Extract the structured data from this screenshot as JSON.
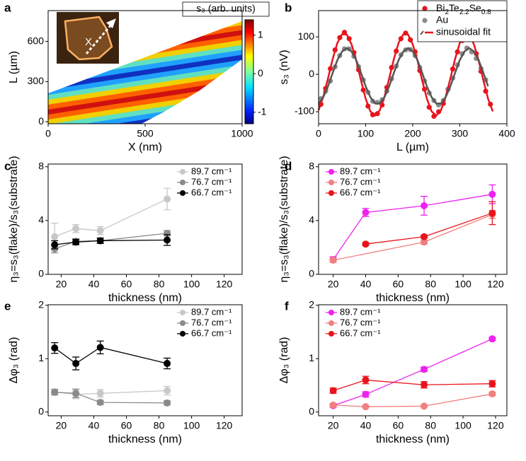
{
  "chart_data": [
    {
      "type": "heatmap",
      "label": "a",
      "xlabel": "X (nm)",
      "ylabel": "L (µm)",
      "xlim": [
        0,
        1000
      ],
      "xticks": [
        0,
        500,
        1000
      ],
      "ylim": [
        -15,
        830
      ],
      "yticks": [
        0,
        300,
        600
      ],
      "colorbar_label": "s₃ (arb. units)",
      "clim": [
        -1.3,
        1.4
      ],
      "cticks": [
        -1,
        0,
        1
      ],
      "inset_label": "X"
    },
    {
      "type": "scatter",
      "label": "b",
      "xlabel": "L (µm)",
      "ylabel": "s₃ (nV)",
      "xlim": [
        0,
        400
      ],
      "xticks": [
        0,
        100,
        200,
        300,
        400
      ],
      "ylim": [
        -132,
        170
      ],
      "yticks": [
        -100,
        0,
        100
      ],
      "legend": "upper right",
      "series": [
        {
          "name": "Bi2Te2.2Se0.8",
          "color": "#e8141c",
          "mode": "markers",
          "x": [
            5,
            15,
            25,
            35,
            45,
            55,
            65,
            75,
            85,
            95,
            105,
            115,
            125,
            135,
            145,
            155,
            165,
            175,
            185,
            195,
            205,
            215,
            225,
            235,
            245,
            255,
            265,
            275,
            285,
            295,
            305,
            315,
            325,
            335,
            345,
            355,
            365
          ],
          "values": [
            -80,
            -38,
            15,
            65,
            98,
            112,
            95,
            58,
            12,
            -42,
            -85,
            -108,
            -105,
            -82,
            -35,
            18,
            62,
            95,
            110,
            92,
            60,
            10,
            -40,
            -88,
            -112,
            -100,
            -78,
            -40,
            14,
            60,
            90,
            100,
            96,
            55,
            8,
            -45,
            -80
          ]
        },
        {
          "name": "Au",
          "color": "#8c8c8c",
          "mode": "markers",
          "x": [
            5,
            15,
            25,
            35,
            45,
            55,
            65,
            75,
            85,
            95,
            105,
            115,
            125,
            135,
            145,
            155,
            165,
            175,
            185,
            195,
            205,
            215,
            225,
            235,
            245,
            255,
            265,
            275,
            285,
            295,
            305,
            315,
            325,
            335,
            345,
            355
          ],
          "values": [
            -65,
            -45,
            -18,
            20,
            50,
            68,
            68,
            48,
            20,
            -15,
            -48,
            -72,
            -75,
            -68,
            -45,
            -12,
            22,
            52,
            65,
            66,
            50,
            18,
            -18,
            -50,
            -70,
            -82,
            -70,
            -40,
            -10,
            25,
            55,
            70,
            60,
            42,
            15,
            -15
          ]
        },
        {
          "name": "sinusoidal fit",
          "color": "#e8141c",
          "mode": "line",
          "x": [
            0,
            10,
            20,
            30,
            40,
            50,
            60,
            70,
            80,
            90,
            100,
            110,
            120,
            130,
            140,
            150,
            160,
            170,
            180,
            190,
            200,
            210,
            220,
            230,
            240,
            250,
            260,
            270,
            280,
            290,
            300,
            310,
            320,
            330,
            340,
            350,
            360,
            370
          ],
          "values": [
            -96,
            -60,
            -11,
            41,
            84,
            107,
            106,
            80,
            37,
            -16,
            -65,
            -99,
            -110,
            -96,
            -60,
            -11,
            41,
            84,
            107,
            106,
            80,
            37,
            -16,
            -65,
            -99,
            -110,
            -96,
            -60,
            -11,
            41,
            84,
            107,
            106,
            80,
            37,
            -16,
            -65,
            -99
          ]
        },
        {
          "color": "#555555",
          "mode": "line",
          "x": [
            0,
            10,
            20,
            30,
            40,
            50,
            60,
            70,
            80,
            90,
            100,
            110,
            120,
            130,
            140,
            150,
            160,
            170,
            180,
            190,
            200,
            210,
            220,
            230,
            240,
            250,
            260,
            270,
            280,
            290,
            300,
            310,
            320,
            330,
            340,
            350,
            360
          ],
          "values": [
            -78,
            -61,
            -32,
            4,
            38,
            61,
            70,
            61,
            38,
            4,
            -32,
            -61,
            -78,
            -78,
            -61,
            -32,
            4,
            38,
            61,
            70,
            61,
            38,
            4,
            -32,
            -61,
            -78,
            -78,
            -61,
            -32,
            4,
            38,
            61,
            70,
            61,
            38,
            4,
            -32
          ]
        }
      ]
    },
    {
      "type": "line",
      "label": "c",
      "xlabel": "thickness (nm)",
      "ylabel": "η₃=s₃(flake)/s₃(substrate)",
      "xlim": [
        12,
        131
      ],
      "xticks": [
        20,
        40,
        60,
        80,
        100,
        120
      ],
      "ylim": [
        0,
        8.2
      ],
      "yticks": [
        0,
        4,
        8
      ],
      "legend": "upper right",
      "series": [
        {
          "name": "89.7 cm⁻¹",
          "color": "#c8c8c8",
          "x": [
            16,
            29,
            44,
            85
          ],
          "values": [
            2.8,
            3.4,
            3.25,
            5.6
          ],
          "errors": [
            1.0,
            0.3,
            0.3,
            0.8
          ]
        },
        {
          "name": "76.7 cm⁻¹",
          "color": "#8a8a8a",
          "x": [
            16,
            29,
            44,
            85
          ],
          "values": [
            1.9,
            2.45,
            2.5,
            3.05
          ],
          "errors": [
            0.3,
            0.2,
            0.2,
            0.2
          ]
        },
        {
          "name": "66.7 cm⁻¹",
          "color": "#000000",
          "x": [
            16,
            29,
            44,
            85
          ],
          "values": [
            2.2,
            2.4,
            2.5,
            2.55
          ],
          "errors": [
            0.3,
            0.2,
            0.2,
            0.4
          ]
        }
      ]
    },
    {
      "type": "line",
      "label": "d",
      "xlabel": "thickness (nm)",
      "ylabel": "η₃=s₃(flake)/s₃(substrate)",
      "xlim": [
        11,
        127
      ],
      "xticks": [
        20,
        40,
        60,
        80,
        100,
        120
      ],
      "ylim": [
        0,
        8.2
      ],
      "yticks": [
        0,
        4,
        8
      ],
      "legend": "upper left",
      "series": [
        {
          "name": "89.7 cm⁻¹",
          "color": "#ee22ee",
          "x": [
            20,
            40,
            76,
            118
          ],
          "values": [
            1.1,
            4.6,
            5.1,
            5.95
          ],
          "errors": [
            0.2,
            0.3,
            0.7,
            0.7
          ]
        },
        {
          "name": "76.7 cm⁻¹",
          "color": "#f08080",
          "x": [
            20,
            76,
            118
          ],
          "values": [
            1.05,
            2.4,
            4.45
          ],
          "errors": [
            0.15,
            0.15,
            0.3
          ]
        },
        {
          "name": "66.7 cm⁻¹",
          "color": "#e8141c",
          "x": [
            40,
            76,
            118
          ],
          "values": [
            2.25,
            2.8,
            4.55
          ],
          "errors": [
            0.1,
            0.1,
            0.85
          ]
        }
      ]
    },
    {
      "type": "line",
      "label": "e",
      "xlabel": "thickness (nm)",
      "ylabel": "Δφ₃ (rad)",
      "xlim": [
        12,
        131
      ],
      "xticks": [
        20,
        40,
        60,
        80,
        100,
        120
      ],
      "ylim": [
        -0.07,
        2.01
      ],
      "yticks": [
        0,
        1,
        2
      ],
      "legend": "upper right",
      "series": [
        {
          "name": "89.7 cm⁻¹",
          "color": "#c8c8c8",
          "x": [
            16,
            29,
            44,
            85
          ],
          "values": [
            0.38,
            0.33,
            0.35,
            0.4
          ],
          "errors": [
            0.05,
            0.08,
            0.07,
            0.08
          ]
        },
        {
          "name": "76.7 cm⁻¹",
          "color": "#8a8a8a",
          "x": [
            16,
            29,
            44,
            85
          ],
          "values": [
            0.37,
            0.35,
            0.18,
            0.17
          ],
          "errors": [
            0.05,
            0.08,
            0.04,
            0.04
          ]
        },
        {
          "name": "66.7 cm⁻¹",
          "color": "#000000",
          "x": [
            16,
            29,
            44,
            85
          ],
          "values": [
            1.2,
            0.91,
            1.21,
            0.91
          ],
          "errors": [
            0.1,
            0.12,
            0.12,
            0.1
          ]
        }
      ]
    },
    {
      "type": "line",
      "label": "f",
      "xlabel": "thickness (nm)",
      "ylabel": "Δφ₃ (rad)",
      "xlim": [
        11,
        127
      ],
      "xticks": [
        20,
        40,
        60,
        80,
        100,
        120
      ],
      "ylim": [
        -0.07,
        2.01
      ],
      "yticks": [
        0,
        1,
        2
      ],
      "legend": "upper left",
      "series": [
        {
          "name": "89.7 cm⁻¹",
          "color": "#ee22ee",
          "x": [
            20,
            40,
            76,
            118
          ],
          "values": [
            0.12,
            0.33,
            0.8,
            1.37
          ],
          "errors": [
            0.03,
            0.05,
            0.04,
            0.03
          ]
        },
        {
          "name": "76.7 cm⁻¹",
          "color": "#f08080",
          "x": [
            20,
            40,
            76,
            118
          ],
          "values": [
            0.13,
            0.1,
            0.11,
            0.34
          ],
          "errors": [
            0.03,
            0.02,
            0.02,
            0.03
          ]
        },
        {
          "name": "66.7 cm⁻¹",
          "color": "#e8141c",
          "x": [
            20,
            40,
            76,
            118
          ],
          "values": [
            0.4,
            0.6,
            0.51,
            0.53
          ],
          "errors": [
            0.05,
            0.07,
            0.06,
            0.06
          ]
        }
      ]
    }
  ]
}
